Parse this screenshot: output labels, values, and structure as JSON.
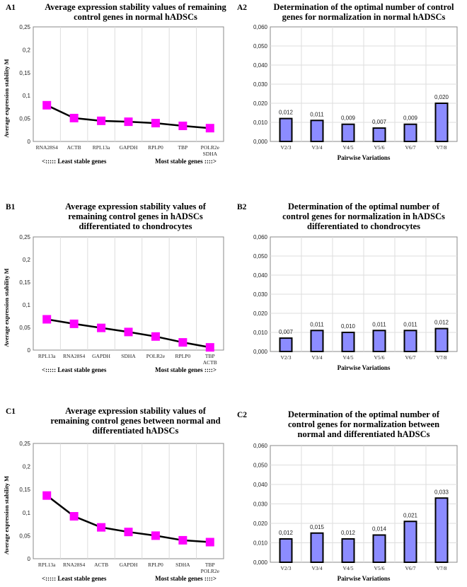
{
  "chart_data": [
    {
      "id": "A1",
      "type": "line",
      "title": [
        "Average expression stability values of remaining",
        "control genes in normal hADSCs"
      ],
      "ylabel": "Average expression stability M",
      "ylim": [
        0,
        0.25
      ],
      "yticks": [
        "0",
        "0,05",
        "0,1",
        "0,15",
        "0,2",
        "0,25"
      ],
      "categories": [
        [
          "RNA28S4"
        ],
        [
          "ACTB"
        ],
        [
          "RPL13a"
        ],
        [
          "GAPDH"
        ],
        [
          "RPLP0"
        ],
        [
          "TBP"
        ],
        [
          "POLR2e",
          "SDHA"
        ]
      ],
      "values": [
        0.079,
        0.051,
        0.045,
        0.043,
        0.04,
        0.034,
        0.029
      ],
      "note_left": "<:::::  Least stable genes",
      "note_right": "Most stable genes ::::>",
      "grid": true,
      "marker_color": "#ff00ff"
    },
    {
      "id": "A2",
      "type": "bar",
      "title": [
        "Determination of the optimal number of control",
        "genes for normalization in normal hADSCs"
      ],
      "xlabel": "Pairwise Variations",
      "ylim": [
        0,
        0.06
      ],
      "yticks": [
        "0,000",
        "0,010",
        "0,020",
        "0,030",
        "0,040",
        "0,050",
        "0,060"
      ],
      "categories": [
        "V2/3",
        "V3/4",
        "V4/5",
        "V5/6",
        "V6/7",
        "V7/8"
      ],
      "values": [
        0.012,
        0.011,
        0.009,
        0.007,
        0.009,
        0.02
      ],
      "data_labels": [
        "0,012",
        "0,011",
        "0,009",
        "0,007",
        "0,009",
        "0,020"
      ],
      "grid": true,
      "bar_color": "#8c8cff"
    },
    {
      "id": "B1",
      "type": "line",
      "title": [
        "Average expression stability values of",
        "remaining control genes in hADSCs",
        "differentiated to chondrocytes"
      ],
      "ylabel": "Average expression stability M",
      "ylim": [
        0,
        0.25
      ],
      "yticks": [
        "0",
        "0,05",
        "0,1",
        "0,15",
        "0,2",
        "0,25"
      ],
      "categories": [
        [
          "RPL13a"
        ],
        [
          "RNA28S4"
        ],
        [
          "GAPDH"
        ],
        [
          "SDHA"
        ],
        [
          "POLR2e"
        ],
        [
          "RPLP0"
        ],
        [
          "TBP",
          "ACTB"
        ]
      ],
      "values": [
        0.068,
        0.058,
        0.049,
        0.04,
        0.03,
        0.017,
        0.006
      ],
      "note_left": "<:::::  Least stable genes",
      "note_right": "Most stable genes ::::>",
      "grid": true,
      "marker_color": "#ff00ff"
    },
    {
      "id": "B2",
      "type": "bar",
      "title": [
        "Determination of the optimal number of",
        "control genes for normalization in hADSCs",
        "differentiated to chondrocytes"
      ],
      "xlabel": "Pairwise Variations",
      "ylim": [
        0,
        0.06
      ],
      "yticks": [
        "0,000",
        "0,010",
        "0,020",
        "0,030",
        "0,040",
        "0,050",
        "0,060"
      ],
      "categories": [
        "V2/3",
        "V3/4",
        "V4/5",
        "V5/6",
        "V6/7",
        "V7/8"
      ],
      "values": [
        0.007,
        0.011,
        0.01,
        0.011,
        0.011,
        0.012
      ],
      "data_labels": [
        "0,007",
        "0,011",
        "0,010",
        "0,011",
        "0,011",
        "0,012"
      ],
      "grid": true,
      "bar_color": "#8c8cff"
    },
    {
      "id": "C1",
      "type": "line",
      "title": [
        "Average expression stability values of",
        "remaining control genes between normal and",
        "differentiated hADSCs"
      ],
      "ylabel": "Average expression stability M",
      "ylim": [
        0,
        0.25
      ],
      "yticks": [
        "0",
        "0,05",
        "0,1",
        "0,15",
        "0,2",
        "0,25"
      ],
      "categories": [
        [
          "RPL13a"
        ],
        [
          "RNA28S4"
        ],
        [
          "ACTB"
        ],
        [
          "GAPDH"
        ],
        [
          "RPLP0"
        ],
        [
          "SDHA"
        ],
        [
          "TBP",
          "POLR2e"
        ]
      ],
      "values": [
        0.137,
        0.092,
        0.068,
        0.058,
        0.05,
        0.04,
        0.036
      ],
      "note_left": "<:::::  Least stable genes",
      "note_right": "Most stable genes ::::>",
      "grid": true,
      "marker_color": "#ff00ff"
    },
    {
      "id": "C2",
      "type": "bar",
      "title": [
        "Determination of the optimal number of",
        "control genes for normalization between",
        "normal and differentiated hADSCs"
      ],
      "xlabel": "Pairwise Variations",
      "ylim": [
        0,
        0.06
      ],
      "yticks": [
        "0,000",
        "0,010",
        "0,020",
        "0,030",
        "0,040",
        "0,050",
        "0,060"
      ],
      "categories": [
        "V2/3",
        "V3/4",
        "V4/5",
        "V5/6",
        "V6/7",
        "V7/8"
      ],
      "values": [
        0.012,
        0.015,
        0.012,
        0.014,
        0.021,
        0.033
      ],
      "data_labels": [
        "0,012",
        "0,015",
        "0,012",
        "0,014",
        "0,021",
        "0,033"
      ],
      "grid": true,
      "bar_color": "#8c8cff"
    }
  ]
}
